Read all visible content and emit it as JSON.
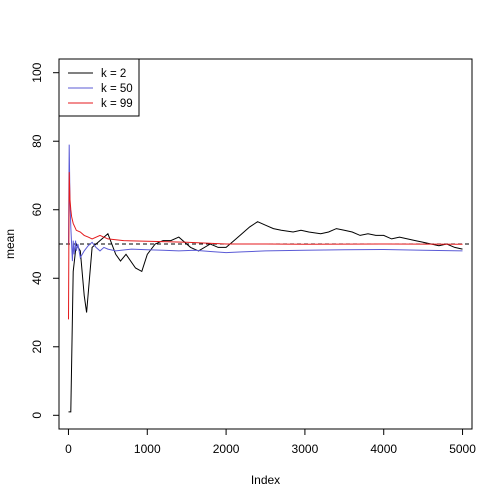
{
  "chart_data": {
    "type": "line",
    "title": "",
    "xlabel": "Index",
    "ylabel": "mean",
    "xlim": [
      -120,
      5120
    ],
    "ylim": [
      -4,
      104
    ],
    "x_ticks": [
      0,
      1000,
      2000,
      3000,
      4000,
      5000
    ],
    "y_ticks": [
      0,
      20,
      40,
      60,
      80,
      100
    ],
    "reference_line": {
      "y": 50,
      "style": "dashed",
      "color": "#000000"
    },
    "legend_position": "top-left",
    "series": [
      {
        "name": "k = 2",
        "color": "#000000",
        "points": [
          [
            1,
            1
          ],
          [
            30,
            1
          ],
          [
            60,
            42
          ],
          [
            100,
            50
          ],
          [
            150,
            48
          ],
          [
            200,
            35
          ],
          [
            230,
            30
          ],
          [
            300,
            49
          ],
          [
            400,
            51
          ],
          [
            500,
            53
          ],
          [
            600,
            47
          ],
          [
            660,
            45
          ],
          [
            730,
            47
          ],
          [
            850,
            43
          ],
          [
            930,
            42
          ],
          [
            1000,
            47
          ],
          [
            1100,
            50
          ],
          [
            1200,
            51
          ],
          [
            1300,
            51
          ],
          [
            1400,
            52
          ],
          [
            1550,
            49
          ],
          [
            1650,
            48
          ],
          [
            1800,
            50
          ],
          [
            1900,
            49
          ],
          [
            2000,
            49
          ],
          [
            2100,
            51
          ],
          [
            2200,
            53
          ],
          [
            2300,
            55
          ],
          [
            2400,
            56.5
          ],
          [
            2500,
            55.5
          ],
          [
            2600,
            54.5
          ],
          [
            2700,
            54
          ],
          [
            2850,
            53.5
          ],
          [
            2950,
            54
          ],
          [
            3050,
            53.5
          ],
          [
            3200,
            53
          ],
          [
            3300,
            53.5
          ],
          [
            3400,
            54.5
          ],
          [
            3500,
            54
          ],
          [
            3600,
            53.5
          ],
          [
            3700,
            52.5
          ],
          [
            3800,
            53
          ],
          [
            3900,
            52.5
          ],
          [
            4000,
            52.5
          ],
          [
            4100,
            51.5
          ],
          [
            4200,
            52
          ],
          [
            4300,
            51.5
          ],
          [
            4400,
            51
          ],
          [
            4500,
            50.5
          ],
          [
            4600,
            50
          ],
          [
            4700,
            49.5
          ],
          [
            4800,
            50
          ],
          [
            4900,
            49
          ],
          [
            5000,
            48.5
          ]
        ]
      },
      {
        "name": "k = 50",
        "color": "#5b5bd6",
        "points": [
          [
            1,
            50
          ],
          [
            10,
            79
          ],
          [
            20,
            62
          ],
          [
            30,
            55
          ],
          [
            40,
            50
          ],
          [
            50,
            45
          ],
          [
            60,
            51
          ],
          [
            70,
            47
          ],
          [
            80,
            49
          ],
          [
            90,
            51
          ],
          [
            100,
            48
          ],
          [
            120,
            50
          ],
          [
            150,
            46
          ],
          [
            200,
            48
          ],
          [
            250,
            49.5
          ],
          [
            300,
            50.5
          ],
          [
            350,
            49
          ],
          [
            400,
            48
          ],
          [
            450,
            49
          ],
          [
            500,
            48.5
          ],
          [
            600,
            48
          ],
          [
            800,
            48.5
          ],
          [
            1000,
            48.3
          ],
          [
            1200,
            48.2
          ],
          [
            1400,
            48
          ],
          [
            1600,
            48.2
          ],
          [
            1800,
            47.8
          ],
          [
            2000,
            47.5
          ],
          [
            2200,
            47.7
          ],
          [
            2500,
            48
          ],
          [
            3000,
            48.2
          ],
          [
            3500,
            48.3
          ],
          [
            4000,
            48.4
          ],
          [
            4500,
            48.2
          ],
          [
            5000,
            48
          ]
        ]
      },
      {
        "name": "k = 99",
        "color": "#e41a1c",
        "points": [
          [
            1,
            28
          ],
          [
            10,
            71
          ],
          [
            20,
            63
          ],
          [
            30,
            60
          ],
          [
            40,
            58
          ],
          [
            60,
            56
          ],
          [
            80,
            55
          ],
          [
            100,
            54
          ],
          [
            150,
            53.5
          ],
          [
            200,
            52.5
          ],
          [
            250,
            52
          ],
          [
            300,
            51.5
          ],
          [
            400,
            52.5
          ],
          [
            500,
            51.5
          ],
          [
            700,
            51
          ],
          [
            1000,
            50.8
          ],
          [
            1500,
            50.5
          ],
          [
            2000,
            50
          ],
          [
            2500,
            50
          ],
          [
            3000,
            49.9
          ],
          [
            4000,
            50
          ],
          [
            5000,
            49.9
          ]
        ]
      }
    ]
  }
}
